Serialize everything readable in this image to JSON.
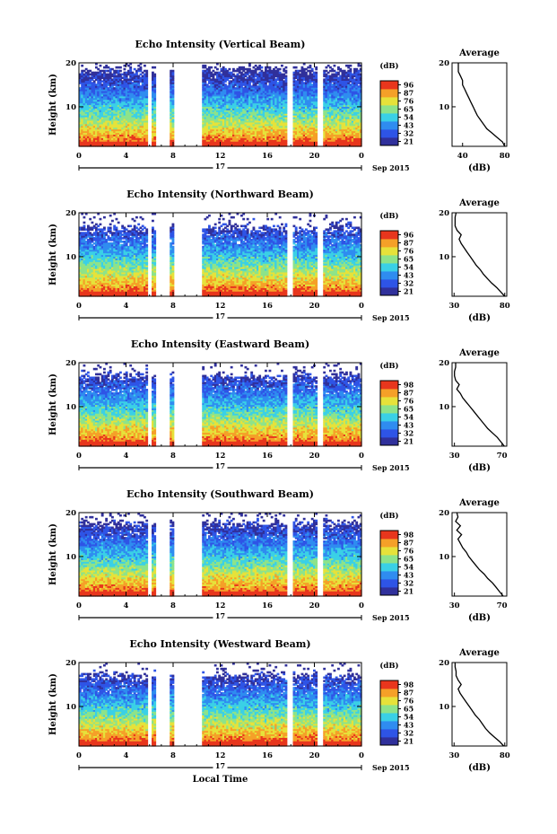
{
  "figure": {
    "x_axis_label": "Local Time",
    "date_label": "Sep 2015",
    "day_label": "17",
    "y_axis_label": "Height (km)",
    "colorbar_unit": "(dB)",
    "profile_title": "Average",
    "profile_xlabel": "(dB)"
  },
  "colors": {
    "colormap": [
      "#30309b",
      "#2e54e6",
      "#2f8cf0",
      "#3ad0e6",
      "#8de38a",
      "#e6e23a",
      "#f5a028",
      "#e8361d"
    ],
    "gap": "#ffffff"
  },
  "chart_data": [
    {
      "type": "heatmap",
      "title": "Echo Intensity (Vertical Beam)",
      "ylabel": "Height (km)",
      "xlabel": "",
      "x_range": [
        0,
        24
      ],
      "y_range": [
        1,
        20
      ],
      "x_ticks": [
        "0",
        "4",
        "8",
        "12",
        "16",
        "20",
        "0"
      ],
      "y_ticks": [
        "20",
        "10"
      ],
      "colorbar_ticks": [
        "96",
        "87",
        "76",
        "65",
        "54",
        "43",
        "32",
        "21"
      ],
      "data_gaps_hours": [
        [
          5.8,
          6.1
        ],
        [
          6.6,
          7.7
        ],
        [
          8.0,
          10.4
        ],
        [
          17.7,
          18.2
        ],
        [
          20.3,
          20.8
        ]
      ],
      "top_km": 18.5,
      "average_profile": {
        "title": "Average",
        "xlabel": "(dB)",
        "x_ticks": [
          "40",
          "80"
        ],
        "x_range": [
          30,
          82
        ],
        "heights": [
          1,
          2,
          3,
          4,
          5,
          6,
          7,
          8,
          9,
          10,
          11,
          12,
          13,
          14,
          15,
          16,
          17,
          18,
          19,
          20
        ],
        "values": [
          80,
          78,
          73,
          68,
          63,
          60,
          57,
          54,
          52,
          50,
          48,
          46,
          44,
          42,
          40,
          40,
          38,
          36,
          36,
          36
        ]
      }
    },
    {
      "type": "heatmap",
      "title": "Echo Intensity (Northward Beam)",
      "ylabel": "Height (km)",
      "xlabel": "",
      "x_range": [
        0,
        24
      ],
      "y_range": [
        1,
        20
      ],
      "x_ticks": [
        "0",
        "4",
        "8",
        "12",
        "16",
        "20",
        "0"
      ],
      "y_ticks": [
        "20",
        "10"
      ],
      "colorbar_ticks": [
        "96",
        "87",
        "76",
        "65",
        "54",
        "43",
        "32",
        "21"
      ],
      "data_gaps_hours": [
        [
          5.8,
          6.1
        ],
        [
          6.6,
          7.7
        ],
        [
          8.0,
          10.4
        ],
        [
          17.7,
          18.2
        ],
        [
          20.3,
          20.8
        ]
      ],
      "top_km": 16.5,
      "average_profile": {
        "title": "Average",
        "xlabel": "(dB)",
        "x_ticks": [
          "30",
          "80"
        ],
        "x_range": [
          28,
          82
        ],
        "heights": [
          1,
          2,
          3,
          4,
          5,
          6,
          7,
          8,
          9,
          10,
          11,
          12,
          13,
          14,
          15,
          16,
          17,
          18,
          19,
          20
        ],
        "values": [
          80,
          76,
          72,
          67,
          63,
          59,
          56,
          52,
          49,
          46,
          43,
          40,
          37,
          35,
          37,
          33,
          31,
          31,
          31,
          32
        ]
      }
    },
    {
      "type": "heatmap",
      "title": "Echo Intensity (Eastward Beam)",
      "ylabel": "Height (km)",
      "xlabel": "",
      "x_range": [
        0,
        24
      ],
      "y_range": [
        1,
        20
      ],
      "x_ticks": [
        "0",
        "4",
        "8",
        "12",
        "16",
        "20",
        "0"
      ],
      "y_ticks": [
        "20",
        "10"
      ],
      "colorbar_ticks": [
        "98",
        "87",
        "76",
        "65",
        "54",
        "43",
        "32",
        "21"
      ],
      "data_gaps_hours": [
        [
          5.8,
          6.1
        ],
        [
          6.6,
          7.7
        ],
        [
          8.0,
          10.4
        ],
        [
          17.7,
          18.2
        ],
        [
          20.3,
          20.8
        ]
      ],
      "top_km": 17.0,
      "average_profile": {
        "title": "Average",
        "xlabel": "(dB)",
        "x_ticks": [
          "30",
          "70"
        ],
        "x_range": [
          28,
          74
        ],
        "heights": [
          1,
          2,
          3,
          4,
          5,
          6,
          7,
          8,
          9,
          10,
          11,
          12,
          13,
          14,
          15,
          16,
          17,
          18,
          19,
          20
        ],
        "values": [
          72,
          69,
          66,
          62,
          58,
          55,
          52,
          49,
          46,
          43,
          40,
          37,
          35,
          32,
          34,
          31,
          30,
          30,
          31,
          31
        ]
      }
    },
    {
      "type": "heatmap",
      "title": "Echo Intensity (Southward Beam)",
      "ylabel": "Height (km)",
      "xlabel": "",
      "x_range": [
        0,
        24
      ],
      "y_range": [
        1,
        20
      ],
      "x_ticks": [
        "0",
        "4",
        "8",
        "12",
        "16",
        "20",
        "0"
      ],
      "y_ticks": [
        "20",
        "10"
      ],
      "colorbar_ticks": [
        "98",
        "87",
        "76",
        "65",
        "54",
        "43",
        "32",
        "21"
      ],
      "data_gaps_hours": [
        [
          5.8,
          6.1
        ],
        [
          6.6,
          7.7
        ],
        [
          8.0,
          10.4
        ],
        [
          17.7,
          18.2
        ],
        [
          20.3,
          20.8
        ]
      ],
      "top_km": 17.5,
      "average_profile": {
        "title": "Average",
        "xlabel": "(dB)",
        "x_ticks": [
          "30",
          "70"
        ],
        "x_range": [
          28,
          74
        ],
        "heights": [
          1,
          2,
          3,
          4,
          5,
          6,
          7,
          8,
          9,
          10,
          11,
          12,
          13,
          14,
          15,
          16,
          17,
          18,
          19,
          20
        ],
        "values": [
          71,
          68,
          65,
          62,
          58,
          55,
          51,
          48,
          45,
          42,
          40,
          37,
          35,
          33,
          36,
          32,
          35,
          31,
          33,
          32
        ]
      }
    },
    {
      "type": "heatmap",
      "title": "Echo Intensity (Westward Beam)",
      "ylabel": "Height (km)",
      "xlabel": "Local Time",
      "x_range": [
        0,
        24
      ],
      "y_range": [
        1,
        20
      ],
      "x_ticks": [
        "0",
        "4",
        "8",
        "12",
        "16",
        "20",
        "0"
      ],
      "y_ticks": [
        "20",
        "10"
      ],
      "colorbar_ticks": [
        "98",
        "87",
        "76",
        "65",
        "54",
        "43",
        "32",
        "21"
      ],
      "data_gaps_hours": [
        [
          5.8,
          6.1
        ],
        [
          6.6,
          7.7
        ],
        [
          8.0,
          10.4
        ],
        [
          17.7,
          18.2
        ],
        [
          20.3,
          20.8
        ]
      ],
      "top_km": 17.0,
      "average_profile": {
        "title": "Average",
        "xlabel": "(dB)",
        "x_ticks": [
          "30",
          "80"
        ],
        "x_range": [
          28,
          82
        ],
        "heights": [
          1,
          2,
          3,
          4,
          5,
          6,
          7,
          8,
          9,
          10,
          11,
          12,
          13,
          14,
          15,
          16,
          17,
          18,
          19,
          20
        ],
        "values": [
          79,
          75,
          70,
          65,
          61,
          58,
          55,
          51,
          48,
          45,
          42,
          39,
          36,
          34,
          37,
          34,
          32,
          32,
          31,
          31
        ]
      }
    }
  ]
}
